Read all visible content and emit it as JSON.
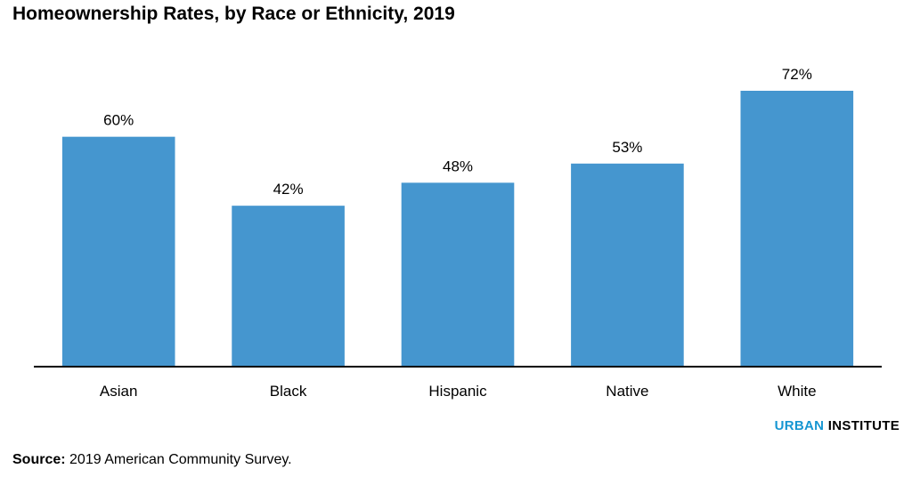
{
  "title": "Homeownership Rates, by Race or Ethnicity, 2019",
  "colors": {
    "bar": "#4596cf",
    "axis": "#000000",
    "brand_accent": "#1696d2"
  },
  "brand": {
    "urban": "URBAN",
    "institute": "INSTITUTE"
  },
  "source": {
    "label": "Source:",
    "text": "2019 American Community Survey."
  },
  "chart_data": {
    "type": "bar",
    "title": "Homeownership Rates, by Race or Ethnicity, 2019",
    "categories": [
      "Asian",
      "Black",
      "Hispanic",
      "Native",
      "White"
    ],
    "values": [
      60,
      42,
      48,
      53,
      72
    ],
    "data_labels": [
      "60%",
      "42%",
      "48%",
      "53%",
      "72%"
    ],
    "unit": "%",
    "ylim": [
      0,
      72
    ],
    "grid": false,
    "legend": "none"
  }
}
